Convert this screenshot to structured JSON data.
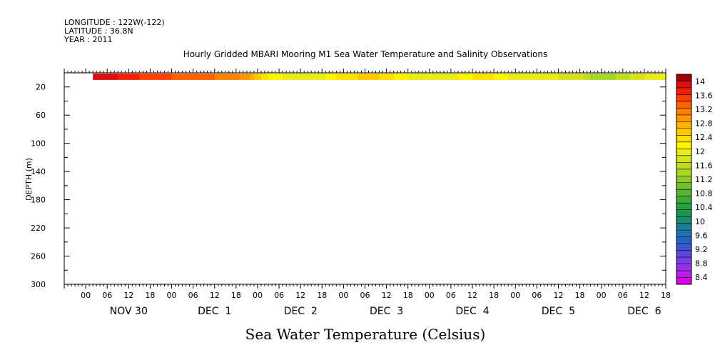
{
  "header": {
    "longitude": "LONGITUDE : 122W(-122)",
    "latitude": "LATITUDE : 36.8N",
    "year": "YEAR : 2011"
  },
  "colors": {
    "frame": "#000000",
    "background": "#ffffff"
  },
  "chart_data": {
    "type": "heatmap",
    "title": "Hourly Gridded MBARI Mooring M1 Sea Water Temperature and Salinity Observations",
    "xlabel": "Sea Water Temperature (Celsius)",
    "ylabel": "DEPTH (m)",
    "ylim": [
      300,
      0
    ],
    "y_reversed": true,
    "y_ticks": [
      20,
      60,
      100,
      140,
      180,
      220,
      260,
      300
    ],
    "xlim_hours": [
      -6,
      162
    ],
    "x_tick_labels": [
      "00",
      "06",
      "12",
      "18",
      "00",
      "06",
      "12",
      "18",
      "00",
      "06",
      "12",
      "18",
      "00",
      "06",
      "12",
      "18",
      "00",
      "06",
      "12",
      "18",
      "00",
      "06",
      "12",
      "18",
      "00",
      "06",
      "12",
      "18"
    ],
    "x_day_labels": [
      "NOV 30",
      "DEC  1",
      "DEC  2",
      "DEC  3",
      "DEC  4",
      "DEC  5",
      "DEC  6"
    ],
    "data_depth_range_m": [
      0,
      10
    ],
    "data_start_hour": 2,
    "data_end_hour": 162,
    "hourly_temperature_keypoints": [
      [
        2,
        14.1
      ],
      [
        9,
        14.0
      ],
      [
        14,
        13.85
      ],
      [
        18,
        13.7
      ],
      [
        24,
        13.6
      ],
      [
        30,
        13.5
      ],
      [
        36,
        13.4
      ],
      [
        42,
        13.3
      ],
      [
        46,
        13.0
      ],
      [
        48,
        12.7
      ],
      [
        51,
        12.4
      ],
      [
        55,
        12.2
      ],
      [
        60,
        12.0
      ],
      [
        66,
        12.1
      ],
      [
        72,
        12.5
      ],
      [
        76,
        12.6
      ],
      [
        80,
        12.7
      ],
      [
        86,
        12.4
      ],
      [
        92,
        12.1
      ],
      [
        100,
        12.0
      ],
      [
        104,
        12.2
      ],
      [
        108,
        12.4
      ],
      [
        112,
        12.5
      ],
      [
        116,
        12.3
      ],
      [
        122,
        12.0
      ],
      [
        132,
        12.0
      ],
      [
        138,
        11.9
      ],
      [
        142,
        11.5
      ],
      [
        146,
        11.5
      ],
      [
        150,
        11.7
      ],
      [
        156,
        12.0
      ],
      [
        162,
        12.0
      ]
    ],
    "colorbar": {
      "labels": [
        "14",
        "13.6",
        "13.2",
        "12.8",
        "12.4",
        "12",
        "11.6",
        "11.2",
        "10.8",
        "10.4",
        "10",
        "9.6",
        "9.2",
        "8.8",
        "8.4"
      ],
      "min": 8.2,
      "max": 14.2,
      "step": 0.2,
      "colors_low_to_high": [
        "#dd00f0",
        "#b820ee",
        "#9a30ea",
        "#7a3ee8",
        "#5a48e0",
        "#3c56d4",
        "#2664c4",
        "#1e73b0",
        "#1a8090",
        "#168c70",
        "#1a9650",
        "#28a040",
        "#40aa36",
        "#5ab430",
        "#74be2c",
        "#8ec82a",
        "#a8d426",
        "#c0dc20",
        "#d4e41c",
        "#e8ec18",
        "#fcf400",
        "#ffe000",
        "#ffc800",
        "#ffb000",
        "#ff9800",
        "#ff8000",
        "#ff6000",
        "#ff4000",
        "#f02000",
        "#d81010",
        "#a00000"
      ]
    }
  }
}
